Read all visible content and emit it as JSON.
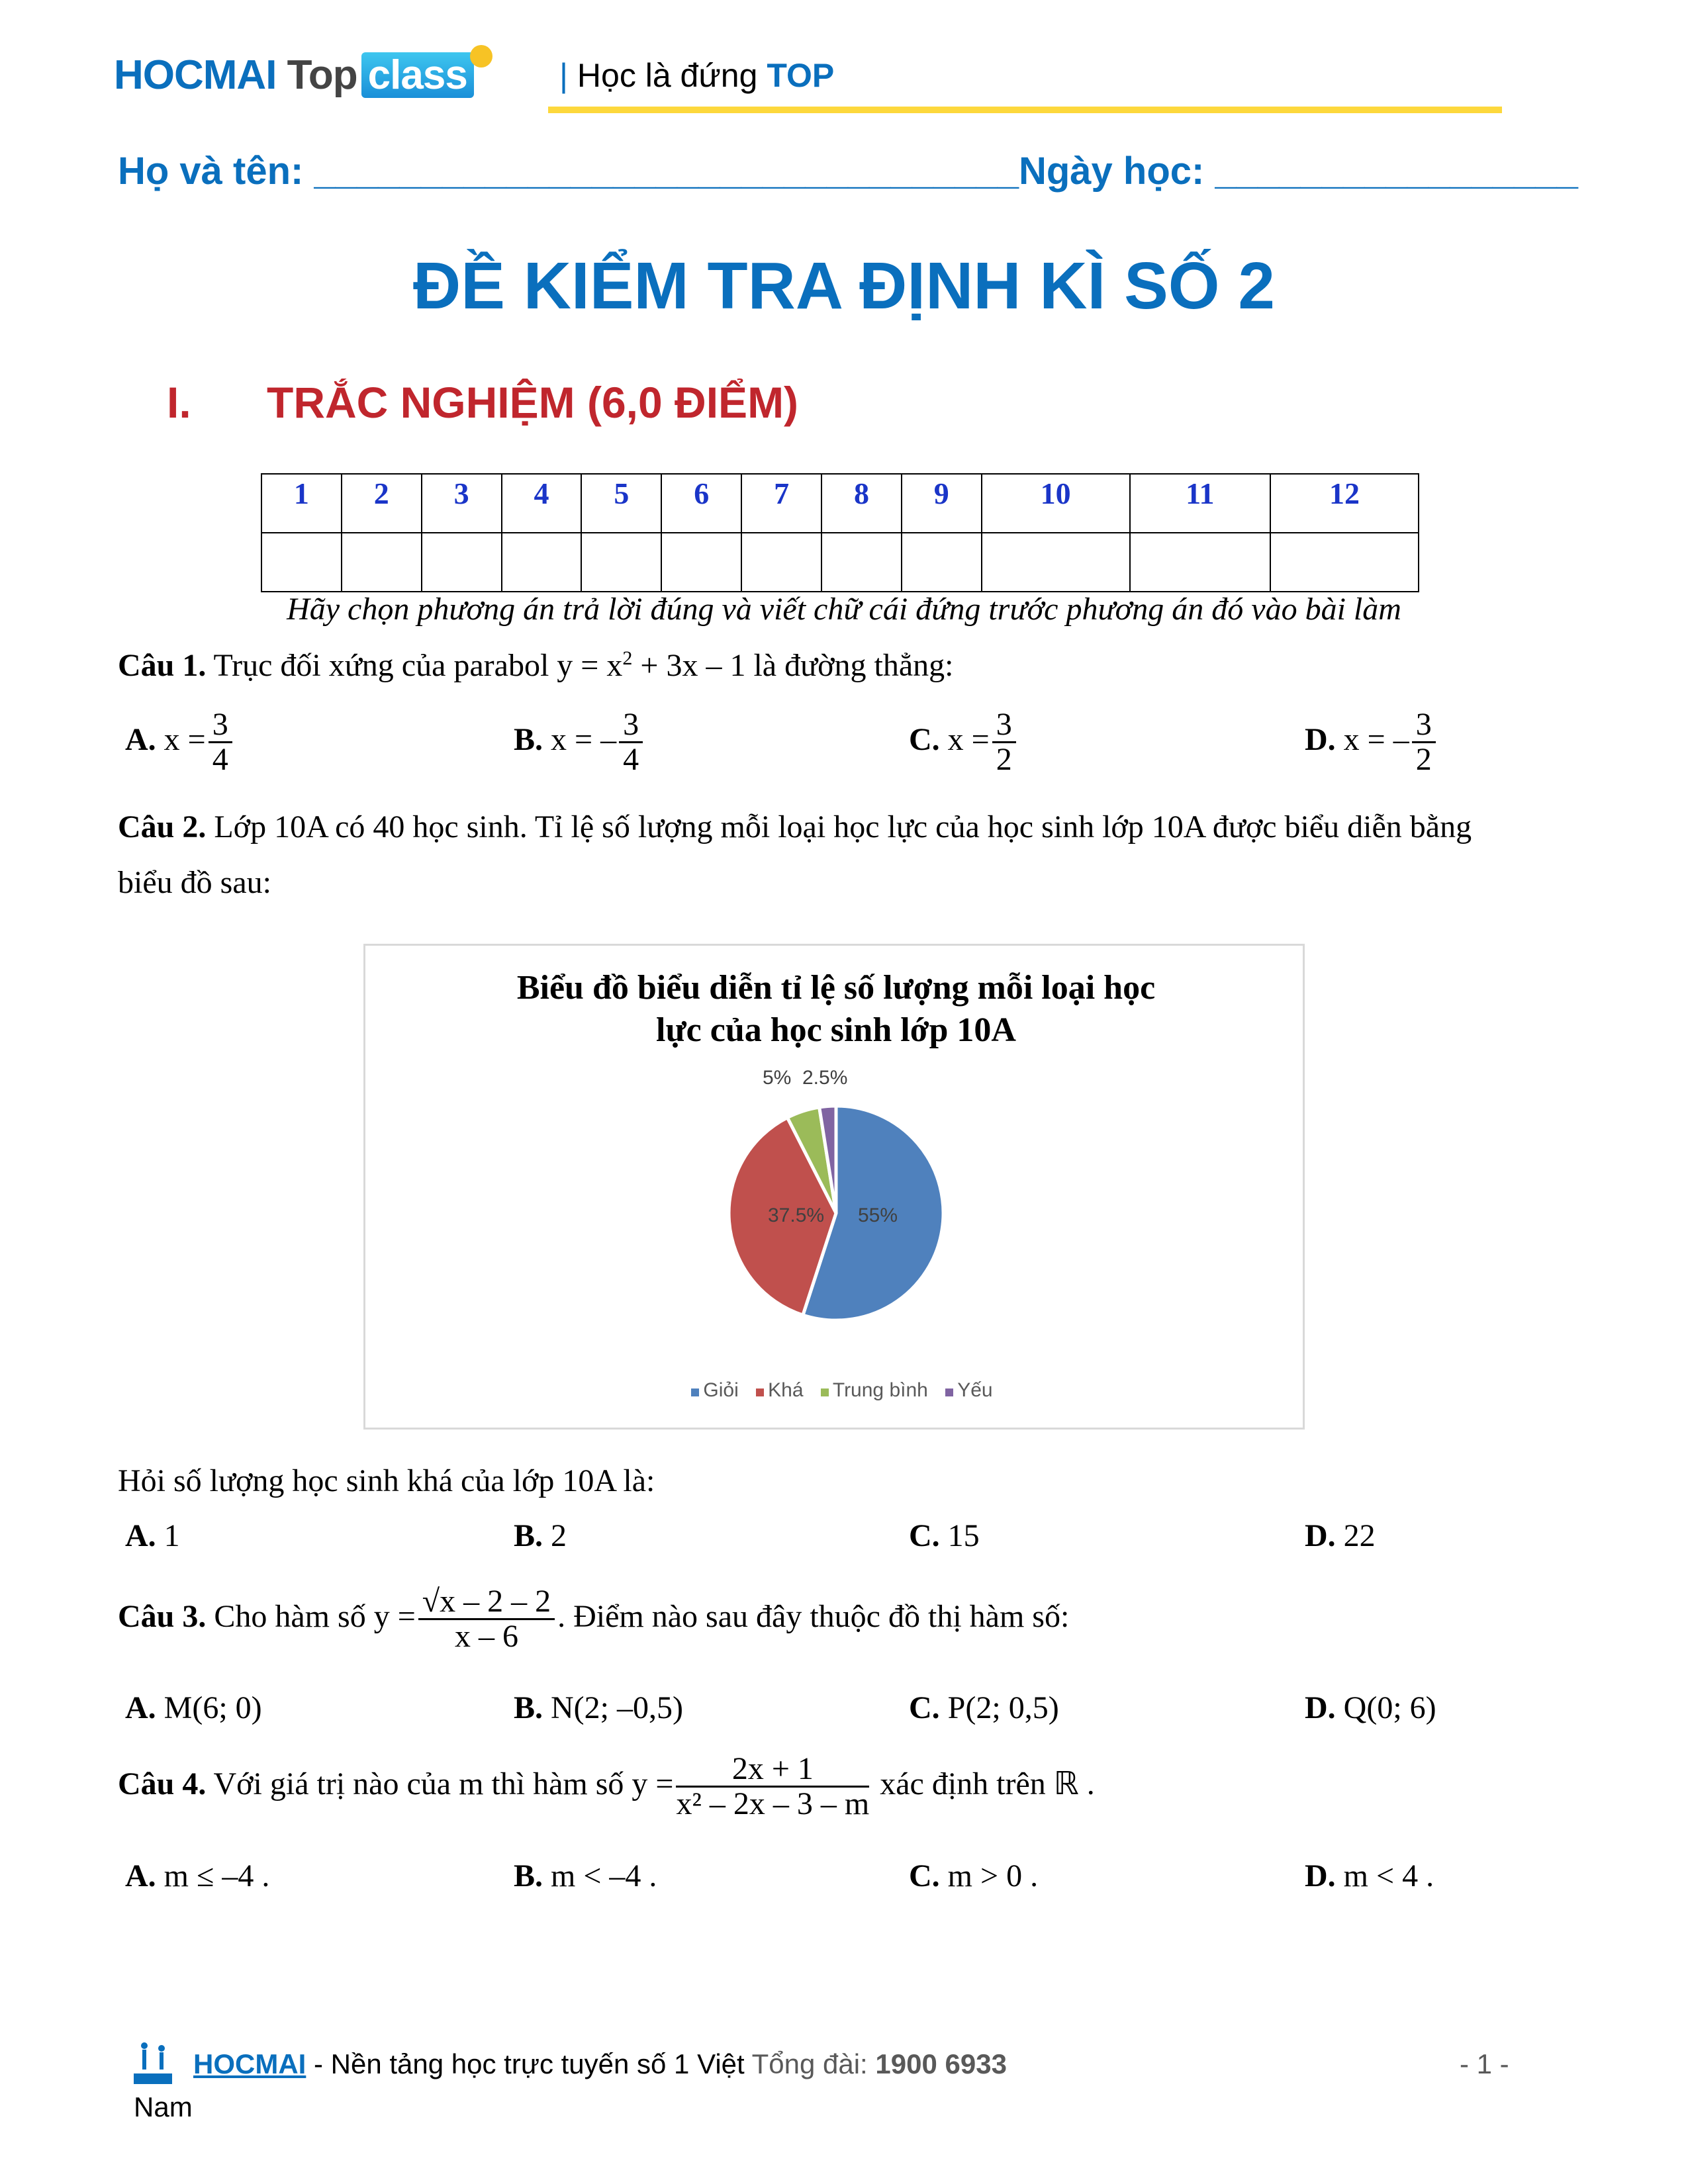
{
  "header": {
    "logo": {
      "hocmai": "HOCMAI",
      "top": "Top",
      "class": "class"
    },
    "tagline_bar": "|",
    "tagline_text": "Học là đứng ",
    "tagline_bold": "TOP"
  },
  "student": {
    "name_label": "Họ và tên: ",
    "name_blank": "_________________________________",
    "date_label": "Ngày học: ",
    "date_blank": "_________________"
  },
  "title": "ĐỀ KIỂM TRA ĐỊNH KÌ SỐ 2",
  "section": {
    "number": "I.",
    "title": "TRẮC NGHIỆM (6,0 ĐIỂM)"
  },
  "answer_table": {
    "headers": [
      "1",
      "2",
      "3",
      "4",
      "5",
      "6",
      "7",
      "8",
      "9",
      "10",
      "11",
      "12"
    ]
  },
  "instruction": "Hãy chọn phương án trả lời đúng và viết chữ cái đứng trước phương án đó vào bài làm",
  "q1": {
    "label": "Câu 1.",
    "text_a": " Trục đối xứng của parabol y = x",
    "sup": "2",
    "text_b": " + 3x – 1 là đường thẳng:",
    "options": [
      {
        "letter": "A.",
        "pre": "x =",
        "num": "3",
        "den": "4"
      },
      {
        "letter": "B.",
        "pre": "x = –",
        "num": "3",
        "den": "4"
      },
      {
        "letter": "C.",
        "pre": "x =",
        "num": "3",
        "den": "2"
      },
      {
        "letter": "D.",
        "pre": "x = –",
        "num": "3",
        "den": "2"
      }
    ]
  },
  "q2": {
    "label": "Câu 2.",
    "line1": " Lớp 10A có 40 học sinh. Tỉ lệ số lượng mỗi loại học lực của học sinh lớp 10A được biểu diễn bằng",
    "line2": "biểu đồ sau:",
    "question": "Hỏi số lượng học sinh khá của lớp 10A là:",
    "options": [
      {
        "letter": "A.",
        "text": " 1"
      },
      {
        "letter": "B.",
        "text": " 2"
      },
      {
        "letter": "C.",
        "text": " 15"
      },
      {
        "letter": "D.",
        "text": " 22"
      }
    ]
  },
  "chart_data": {
    "type": "pie",
    "title_line1": "Biểu đồ biểu diễn tỉ lệ số lượng mỗi loại học",
    "title_line2": "lực của học sinh lớp 10A",
    "legend_position": "bottom",
    "categories": [
      "Giỏi",
      "Khá",
      "Trung bình",
      "Yếu"
    ],
    "values": [
      55,
      37.5,
      5,
      2.5
    ],
    "labels": [
      "55%",
      "37.5%",
      "5%",
      "2.5%"
    ],
    "colors": [
      "#4f81bd",
      "#c0504d",
      "#9bbb59",
      "#8064a2"
    ]
  },
  "q3": {
    "label": "Câu 3.",
    "pre": " Cho hàm số  y =",
    "num": "√x – 2 – 2",
    "den": "x – 6",
    "post": ". Điểm nào sau đây thuộc đồ thị hàm số:",
    "options": [
      {
        "letter": "A.",
        "text": " M(6; 0)"
      },
      {
        "letter": "B.",
        "text": " N(2; –0,5)"
      },
      {
        "letter": "C.",
        "text": " P(2; 0,5)"
      },
      {
        "letter": "D.",
        "text": " Q(0; 6)"
      }
    ]
  },
  "q4": {
    "label": "Câu 4.",
    "pre": " Với giá trị nào của  m  thì hàm số  y =",
    "num": "2x + 1",
    "den": "x² – 2x – 3 – m",
    "post": " xác định trên  ℝ .",
    "options": [
      {
        "letter": "A.",
        "text": " m ≤ –4 ."
      },
      {
        "letter": "B.",
        "text": " m < –4 ."
      },
      {
        "letter": "C.",
        "text": " m > 0 ."
      },
      {
        "letter": "D.",
        "text": " m < 4 ."
      }
    ]
  },
  "footer": {
    "brand": "HOCMAI",
    "text": " - Nền tảng học trực tuyến số 1 Việt",
    "hotline_label": "  Tổng đài: ",
    "hotline": "1900 6933",
    "line2": "Nam",
    "page": "- 1 -"
  }
}
